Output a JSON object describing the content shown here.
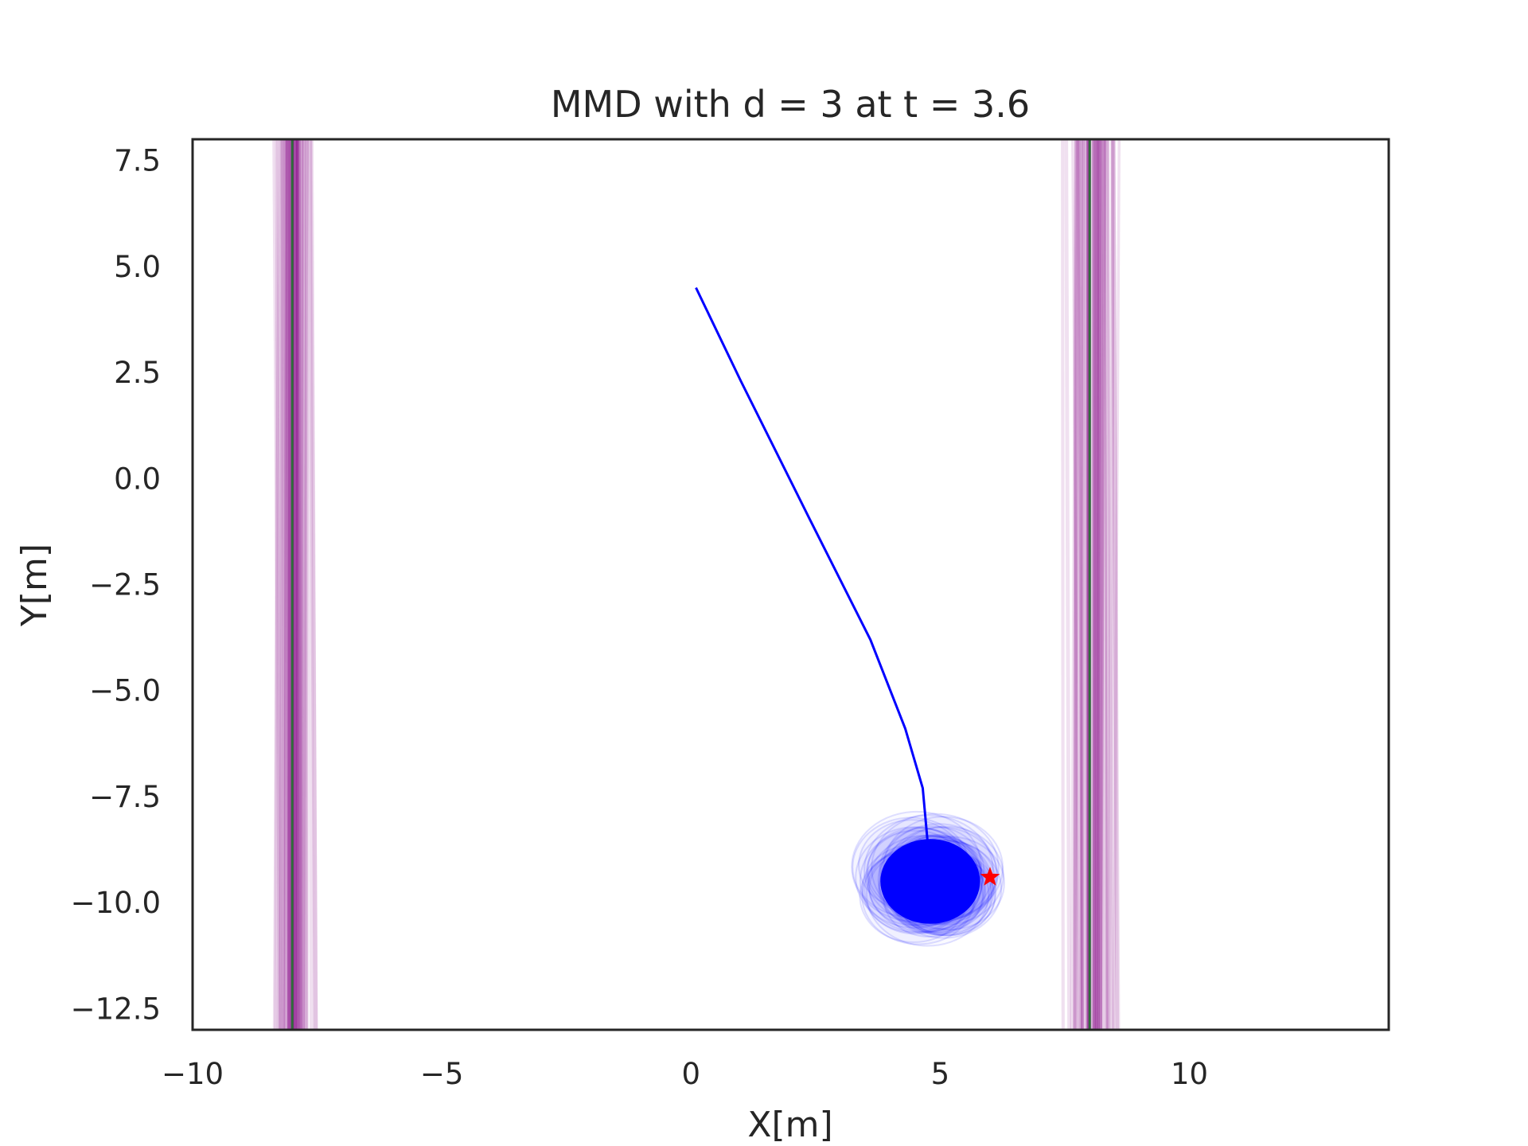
{
  "chart_data": {
    "type": "line",
    "title": "MMD with d = 3 at t = 3.6",
    "xlabel": "X[m]",
    "ylabel": "Y[m]",
    "xlim": [
      -10,
      14
    ],
    "ylim": [
      -13,
      8
    ],
    "x_ticks": [
      -10,
      -5,
      0,
      5,
      10
    ],
    "x_tick_labels": [
      "−10",
      "−5",
      "0",
      "5",
      "10"
    ],
    "y_ticks": [
      7.5,
      5.0,
      2.5,
      0.0,
      -2.5,
      -5.0,
      -7.5,
      -10.0,
      -12.5
    ],
    "y_tick_labels": [
      "7.5",
      "5.0",
      "2.5",
      "0.0",
      "−2.5",
      "−5.0",
      "−7.5",
      "−10.0",
      "−12.5"
    ],
    "grid": false,
    "trajectory": {
      "color": "#0000ff",
      "x": [
        0.1,
        1.0,
        2.4,
        3.6,
        4.3,
        4.65,
        4.75
      ],
      "y": [
        4.5,
        2.3,
        -1.0,
        -3.8,
        -5.9,
        -7.3,
        -8.6
      ]
    },
    "vehicle": {
      "color": "#0000ff",
      "center": [
        4.8,
        -9.5
      ],
      "radius_x": 1.0,
      "radius_y": 1.0
    },
    "uncertainty_samples": {
      "color": "#0000ff",
      "count": 40,
      "center": [
        4.8,
        -9.5
      ],
      "spread": 0.4
    },
    "goal": {
      "color": "#ff0000",
      "marker": "star",
      "x": 6.0,
      "y": -9.4
    },
    "walls": [
      {
        "nominal_x": -8.0,
        "sample_spread": 0.45,
        "color": "#800080",
        "center_color": "#2e6b3a"
      },
      {
        "nominal_x": 8.0,
        "sample_spread": 0.7,
        "color": "#800080",
        "center_color": "#2e6b3a"
      }
    ]
  }
}
